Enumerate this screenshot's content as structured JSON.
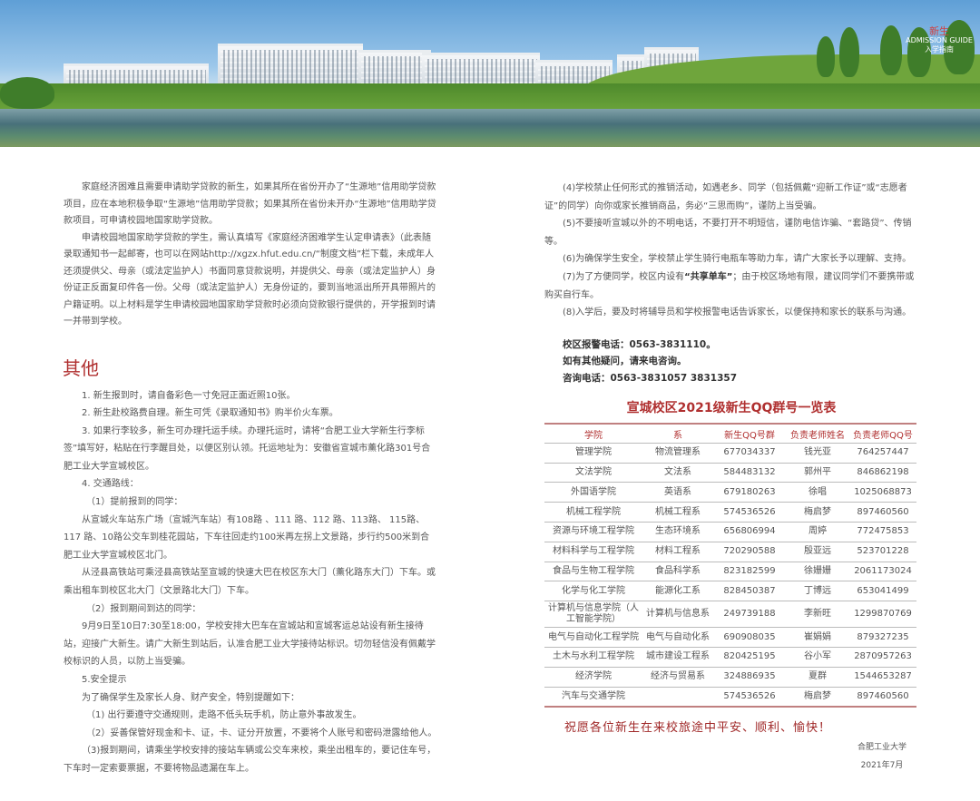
{
  "banner": {
    "logo": {
      "top": "新生",
      "middle": "ADMISSION GUIDE",
      "bottom": "入学指南"
    }
  },
  "left": {
    "paragraphs": [
      "家庭经济困难且需要申请助学贷款的新生，如果其所在省份开办了“生源地”信用助学贷款项目，应在本地积极争取“生源地”信用助学贷款；如果其所在省份未开办“生源地”信用助学贷款项目，可申请校园地国家助学贷款。",
      "申请校园地国家助学贷款的学生，需认真填写《家庭经济困难学生认定申请表》（此表随录取通知书一起邮寄，也可以在网站http://xgzx.hfut.edu.cn/“制度文档”栏下载，未成年人还须提供父、母亲（或法定监护人）书面同意贷款说明，并提供父、母亲（或法定监护人）身份证正反面复印件各一份。父母（或法定监护人）无身份证的，要到当地派出所开具带照片的户籍证明。以上材料是学生申请校园地国家助学贷款时必须向贷款银行提供的，开学报到时请一并带到学校。"
    ],
    "section_title": "其他",
    "items": [
      "1. 新生报到时，请自备彩色一寸免冠正面近照10张。",
      "2. 新生赴校路费自理。新生可凭《录取通知书》购半价火车票。",
      "3.  如果行李较多，新生可办理托运手续。办理托运时，请将“合肥工业大学新生行李标签”填写好，粘贴在行李醒目处，以便区别认领。托运地址为：安徽省宣城市薰化路301号合肥工业大学宣城校区。",
      "4. 交通路线：",
      "（1）提前报到的同学：",
      "从宣城火车站东广场（宣城汽车站）有108路 、111 路、112 路、113路、 115路、 117 路、10路公交车到桂花园站，下车往回走约100米再左拐上文景路，步行约500米到合肥工业大学宣城校区北门。",
      "从泾县高铁站可乘泾县高铁站至宣城的快速大巴在校区东大门（薰化路东大门）下车。或乘出租车到校区北大门（文景路北大门）下车。",
      "（2）报到期间到达的同学：",
      "9月9日至10日7:30至18:00，学校安排大巴车在宣城站和宣城客运总站设有新生接待站，迎接广大新生。请广大新生到站后，认准合肥工业大学接待站标识。切勿轻信没有佩戴学校标识的人员，以防上当受骗。",
      "5.安全提示",
      "为了确保学生及家长人身、财产安全，特别提醒如下：",
      "（1) 出行要遵守交通规则，走路不低头玩手机，防止意外事故发生。",
      "（2）妥善保管好现金和卡、证，卡、证分开放置，不要将个人账号和密码泄露给他人。",
      "（3)报到期间，请乘坐学校安排的接站车辆或公交车来校，乘坐出租车的，要记住车号，下车时一定索要票据，不要将物品遗漏在车上。"
    ]
  },
  "right": {
    "items": [
      "(4)学校禁止任何形式的推销活动，如遇老乡、同学（包括佩戴“迎新工作证”或“志愿者证”的同学）向你或家长推销商品，务必“三思而购”，谨防上当受骗。",
      "(5)不要接听宣城以外的不明电话，不要打开不明短信，谨防电信诈骗、“套路贷”、传销等。",
      "(6)为确保学生安全，学校禁止学生骑行电瓶车等助力车，请广大家长予以理解、支持。"
    ],
    "item7": {
      "before": "(7)为了方便同学，校区内设有",
      "bold": "“共享单车”",
      "after": "；由于校区场地有限，建议同学们不要携带或购买自行车。"
    },
    "item8": "(8)入学后，要及时将辅导员和学校报警电话告诉家长，以便保持和家长的联系与沟通。",
    "contacts": [
      "校区报警电话：0563-3831110。",
      "如有其他疑问，请来电咨询。",
      "咨询电话：0563-3831057  3831357"
    ]
  },
  "table": {
    "title": "宣城校区2021级新生QQ群号一览表",
    "headers": [
      "学院",
      "系",
      "新生QQ号群",
      "负责老师姓名",
      "负责老师QQ号"
    ],
    "rows": [
      [
        "管理学院",
        "物流管理系",
        "677034337",
        "钱光亚",
        "764257447"
      ],
      [
        "文法学院",
        "文法系",
        "584483132",
        "郭州平",
        "846862198"
      ],
      [
        "外国语学院",
        "英语系",
        "679180263",
        "徐唱",
        "1025068873"
      ],
      [
        "机械工程学院",
        "机械工程系",
        "574536526",
        "梅启梦",
        "897460560"
      ],
      [
        "资源与环境工程学院",
        "生态环境系",
        "656806994",
        "周婷",
        "772475853"
      ],
      [
        "材料科学与工程学院",
        "材料工程系",
        "720290588",
        "殷亚远",
        "523701228"
      ],
      [
        "食品与生物工程学院",
        "食品科学系",
        "823182599",
        "徐姗姗",
        "2061173024"
      ],
      [
        "化学与化工学院",
        "能源化工系",
        "828450387",
        "丁博远",
        "653041499"
      ],
      [
        "计算机与信息学院（人工智能学院）",
        "计算机与信息系",
        "249739188",
        "李新旺",
        "1299870769"
      ],
      [
        "电气与自动化工程学院",
        "电气与自动化系",
        "690908035",
        "崔娟娟",
        "879327235"
      ],
      [
        "土木与水利工程学院",
        "城市建设工程系",
        "820425195",
        "谷小军",
        "2870957263"
      ],
      [
        "经济学院",
        "经济与贸易系",
        "324886935",
        "夏群",
        "1544653287"
      ],
      [
        "汽车与交通学院",
        "",
        "574536526",
        "梅启梦",
        "897460560"
      ]
    ]
  },
  "closing": {
    "wish": "祝愿各位新生在来校旅途中平安、顺利、愉快！",
    "org": "合肥工业大学",
    "date": "2021年7月"
  }
}
